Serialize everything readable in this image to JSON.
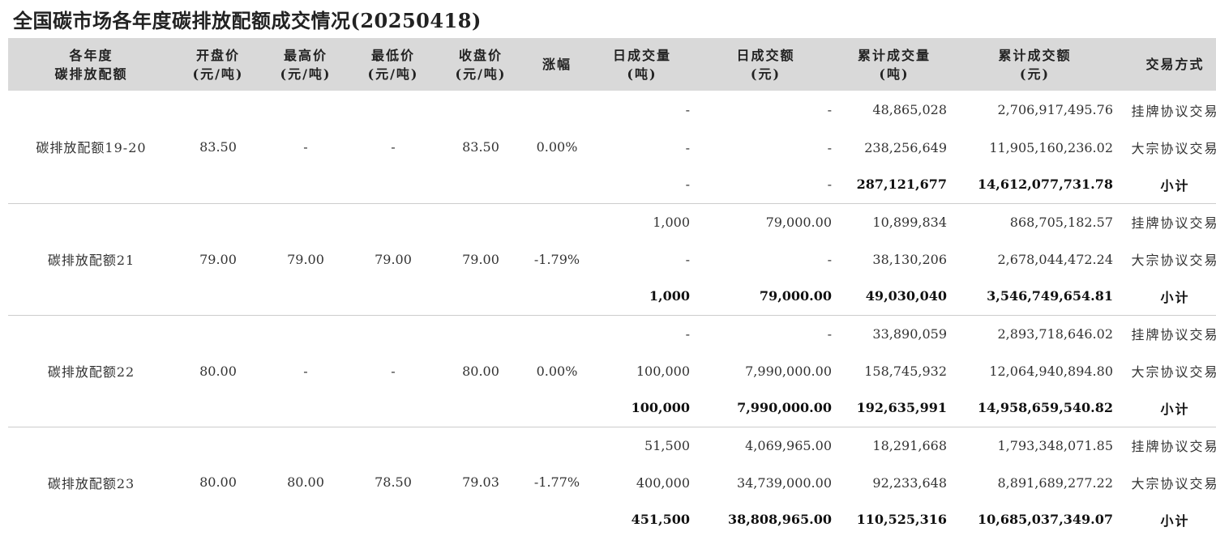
{
  "title": "全国碳市场各年度碳排放配额成交情况(20250418)",
  "headers": {
    "category": [
      "各年度",
      "碳排放配额"
    ],
    "open": [
      "开盘价",
      "(元/吨)"
    ],
    "high": [
      "最高价",
      "(元/吨)"
    ],
    "low": [
      "最低价",
      "(元/吨)"
    ],
    "close": [
      "收盘价",
      "(元/吨)"
    ],
    "change": [
      "涨幅"
    ],
    "daily_volume": [
      "日成交量",
      "(吨)"
    ],
    "daily_amount": [
      "日成交额",
      "(元)"
    ],
    "cum_volume": [
      "累计成交量",
      "(吨)"
    ],
    "cum_amount": [
      "累计成交额",
      "(元)"
    ],
    "method": [
      "交易方式"
    ]
  },
  "groups": [
    {
      "name": "碳排放配额19-20",
      "open": "83.50",
      "high": "-",
      "low": "-",
      "close": "83.50",
      "change": "0.00%",
      "rows": [
        {
          "daily_volume": "-",
          "daily_amount": "-",
          "cum_volume": "48,865,028",
          "cum_amount": "2,706,917,495.76",
          "method": "挂牌协议交易"
        },
        {
          "daily_volume": "-",
          "daily_amount": "-",
          "cum_volume": "238,256,649",
          "cum_amount": "11,905,160,236.02",
          "method": "大宗协议交易"
        },
        {
          "daily_volume": "-",
          "daily_amount": "-",
          "cum_volume": "287,121,677",
          "cum_amount": "14,612,077,731.78",
          "method": "小计"
        }
      ]
    },
    {
      "name": "碳排放配额21",
      "open": "79.00",
      "high": "79.00",
      "low": "79.00",
      "close": "79.00",
      "change": "-1.79%",
      "rows": [
        {
          "daily_volume": "1,000",
          "daily_amount": "79,000.00",
          "cum_volume": "10,899,834",
          "cum_amount": "868,705,182.57",
          "method": "挂牌协议交易"
        },
        {
          "daily_volume": "-",
          "daily_amount": "-",
          "cum_volume": "38,130,206",
          "cum_amount": "2,678,044,472.24",
          "method": "大宗协议交易"
        },
        {
          "daily_volume": "1,000",
          "daily_amount": "79,000.00",
          "cum_volume": "49,030,040",
          "cum_amount": "3,546,749,654.81",
          "method": "小计"
        }
      ]
    },
    {
      "name": "碳排放配额22",
      "open": "80.00",
      "high": "-",
      "low": "-",
      "close": "80.00",
      "change": "0.00%",
      "rows": [
        {
          "daily_volume": "-",
          "daily_amount": "-",
          "cum_volume": "33,890,059",
          "cum_amount": "2,893,718,646.02",
          "method": "挂牌协议交易"
        },
        {
          "daily_volume": "100,000",
          "daily_amount": "7,990,000.00",
          "cum_volume": "158,745,932",
          "cum_amount": "12,064,940,894.80",
          "method": "大宗协议交易"
        },
        {
          "daily_volume": "100,000",
          "daily_amount": "7,990,000.00",
          "cum_volume": "192,635,991",
          "cum_amount": "14,958,659,540.82",
          "method": "小计"
        }
      ]
    },
    {
      "name": "碳排放配额23",
      "open": "80.00",
      "high": "80.00",
      "low": "78.50",
      "close": "79.03",
      "change": "-1.77%",
      "rows": [
        {
          "daily_volume": "51,500",
          "daily_amount": "4,069,965.00",
          "cum_volume": "18,291,668",
          "cum_amount": "1,793,348,071.85",
          "method": "挂牌协议交易"
        },
        {
          "daily_volume": "400,000",
          "daily_amount": "34,739,000.00",
          "cum_volume": "92,233,648",
          "cum_amount": "8,891,689,277.22",
          "method": "大宗协议交易"
        },
        {
          "daily_volume": "451,500",
          "daily_amount": "38,808,965.00",
          "cum_volume": "110,525,316",
          "cum_amount": "10,685,037,349.07",
          "method": "小计"
        }
      ]
    }
  ]
}
